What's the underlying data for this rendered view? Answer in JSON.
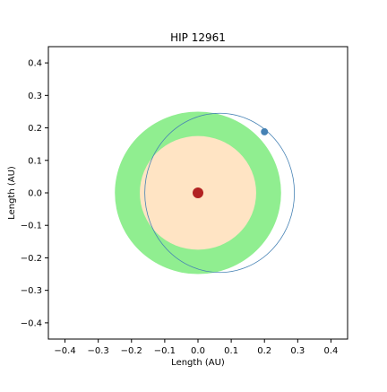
{
  "chart_data": {
    "type": "scatter",
    "title": "HIP 12961",
    "xlabel": "Length (AU)",
    "ylabel": "Length (AU)",
    "xlim": [
      -0.45,
      0.45
    ],
    "ylim": [
      -0.45,
      0.45
    ],
    "grid": false,
    "x_ticks": [
      -0.4,
      -0.3,
      -0.2,
      -0.1,
      0.0,
      0.1,
      0.2,
      0.3,
      0.4
    ],
    "y_ticks": [
      -0.4,
      -0.3,
      -0.2,
      -0.1,
      0.0,
      0.1,
      0.2,
      0.3,
      0.4
    ],
    "x_tick_labels": [
      "−0.4",
      "−0.3",
      "−0.2",
      "−0.1",
      "0.0",
      "0.1",
      "0.2",
      "0.3",
      "0.4"
    ],
    "y_tick_labels": [
      "−0.4",
      "−0.3",
      "−0.2",
      "−0.1",
      "0.0",
      "0.1",
      "0.2",
      "0.3",
      "0.4"
    ],
    "habitable_zone": {
      "outer_radius": 0.25,
      "inner_radius": 0.175,
      "outer_color": "#90ee90",
      "inner_color": "#ffe4c4"
    },
    "star": {
      "x": 0.0,
      "y": 0.0,
      "color": "#b22222"
    },
    "orbit": {
      "center_x": 0.065,
      "center_y": 0.0,
      "semi_major": 0.225,
      "semi_minor": 0.245,
      "color": "#4682b4"
    },
    "planet": {
      "x": 0.2,
      "y": 0.188,
      "color": "#4682b4"
    }
  }
}
